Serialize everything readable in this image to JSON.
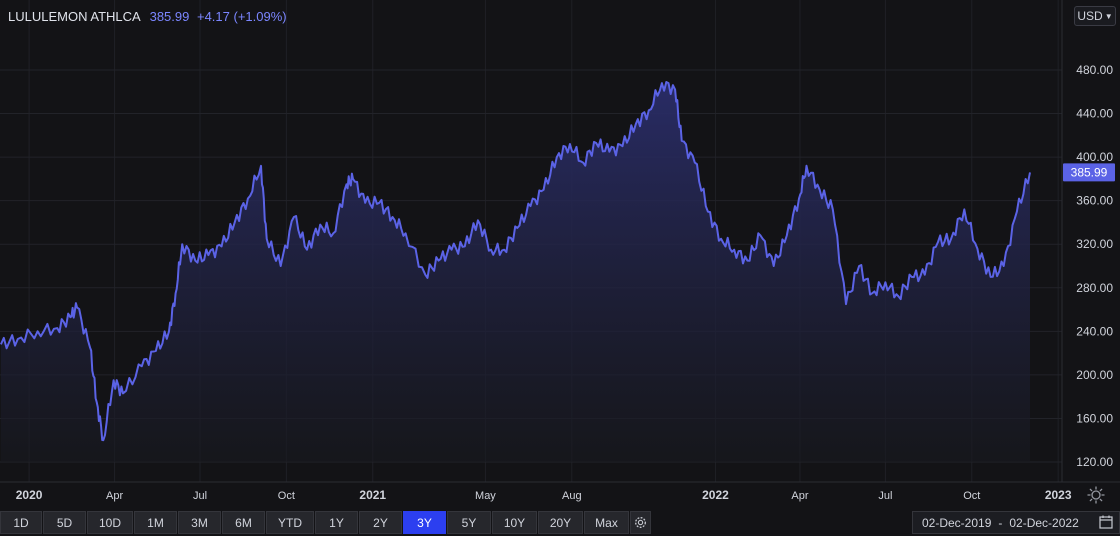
{
  "header": {
    "name": "LULULEMON ATHLCA",
    "price": "385.99",
    "change": "+4.17 (+1.09%)"
  },
  "currency": {
    "label": "USD"
  },
  "range_buttons": [
    {
      "label": "1D",
      "active": false
    },
    {
      "label": "5D",
      "active": false
    },
    {
      "label": "10D",
      "active": false
    },
    {
      "label": "1M",
      "active": false
    },
    {
      "label": "3M",
      "active": false
    },
    {
      "label": "6M",
      "active": false
    },
    {
      "label": "YTD",
      "active": false
    },
    {
      "label": "1Y",
      "active": false
    },
    {
      "label": "2Y",
      "active": false
    },
    {
      "label": "3Y",
      "active": true
    },
    {
      "label": "5Y",
      "active": false
    },
    {
      "label": "10Y",
      "active": false
    },
    {
      "label": "20Y",
      "active": false
    },
    {
      "label": "Max",
      "active": false
    }
  ],
  "date_range": {
    "from": "02-Dec-2019",
    "to": "02-Dec-2022"
  },
  "icons": {
    "settings": "gear-icon",
    "calendar": "calendar-icon",
    "chart_settings": "sun-gear-icon",
    "currency_dropdown": "chevron-down-icon"
  },
  "colors": {
    "line": "#5b63e6",
    "price_label_bg": "#5b63e6",
    "active_button": "#2c3ff0",
    "background": "#131316"
  },
  "chart_data": {
    "type": "area",
    "title": "LULULEMON ATHLCA",
    "ylim": [
      100,
      500
    ],
    "y_ticks": [
      "120.00",
      "160.00",
      "200.00",
      "240.00",
      "280.00",
      "320.00",
      "360.00",
      "400.00",
      "440.00",
      "480.00"
    ],
    "x_ticks": [
      "2020",
      "Apr",
      "Jul",
      "Oct",
      "2021",
      "May",
      "Aug",
      "2022",
      "Apr",
      "Jul",
      "Oct",
      "2023"
    ],
    "last_value_label": "385.99",
    "grid": true,
    "series": [
      {
        "x": [
          "2019-12-02",
          "2019-12-20",
          "2020-01-10",
          "2020-01-31",
          "2020-02-14",
          "2020-02-21",
          "2020-03-06",
          "2020-03-13",
          "2020-03-20",
          "2020-03-31",
          "2020-04-10",
          "2020-04-30",
          "2020-05-15",
          "2020-05-29",
          "2020-06-05",
          "2020-06-12",
          "2020-06-26",
          "2020-07-10",
          "2020-07-24",
          "2020-08-07",
          "2020-08-21",
          "2020-09-04",
          "2020-09-10",
          "2020-09-25",
          "2020-10-09",
          "2020-10-23",
          "2020-11-06",
          "2020-11-20",
          "2020-12-04",
          "2020-12-11",
          "2020-12-24",
          "2021-01-08",
          "2021-01-22",
          "2021-02-05",
          "2021-02-26",
          "2021-03-12",
          "2021-03-26",
          "2021-04-09",
          "2021-04-23",
          "2021-05-07",
          "2021-05-21",
          "2021-06-04",
          "2021-06-18",
          "2021-07-02",
          "2021-07-16",
          "2021-07-30",
          "2021-08-13",
          "2021-08-27",
          "2021-09-10",
          "2021-09-24",
          "2021-10-08",
          "2021-10-22",
          "2021-11-05",
          "2021-11-19",
          "2021-11-26",
          "2021-12-10",
          "2021-12-24",
          "2022-01-07",
          "2022-01-21",
          "2022-02-04",
          "2022-02-18",
          "2022-03-04",
          "2022-03-18",
          "2022-03-31",
          "2022-04-08",
          "2022-04-22",
          "2022-05-06",
          "2022-05-20",
          "2022-06-03",
          "2022-06-17",
          "2022-07-01",
          "2022-07-15",
          "2022-07-29",
          "2022-08-12",
          "2022-08-26",
          "2022-09-09",
          "2022-09-23",
          "2022-10-07",
          "2022-10-21",
          "2022-11-04",
          "2022-11-18",
          "2022-12-02"
        ],
        "values": [
          228,
          233,
          240,
          243,
          253,
          262,
          225,
          175,
          140,
          195,
          183,
          208,
          222,
          240,
          275,
          320,
          305,
          310,
          318,
          340,
          362,
          392,
          325,
          300,
          345,
          315,
          338,
          330,
          375,
          380,
          358,
          358,
          345,
          330,
          292,
          305,
          315,
          318,
          342,
          315,
          315,
          335,
          355,
          370,
          400,
          412,
          395,
          413,
          405,
          410,
          430,
          443,
          468,
          462,
          415,
          395,
          350,
          325,
          315,
          305,
          328,
          300,
          328,
          362,
          392,
          370,
          352,
          265,
          300,
          275,
          285,
          272,
          290,
          292,
          322,
          325,
          352,
          316,
          290,
          300,
          350,
          385.99
        ]
      }
    ]
  }
}
